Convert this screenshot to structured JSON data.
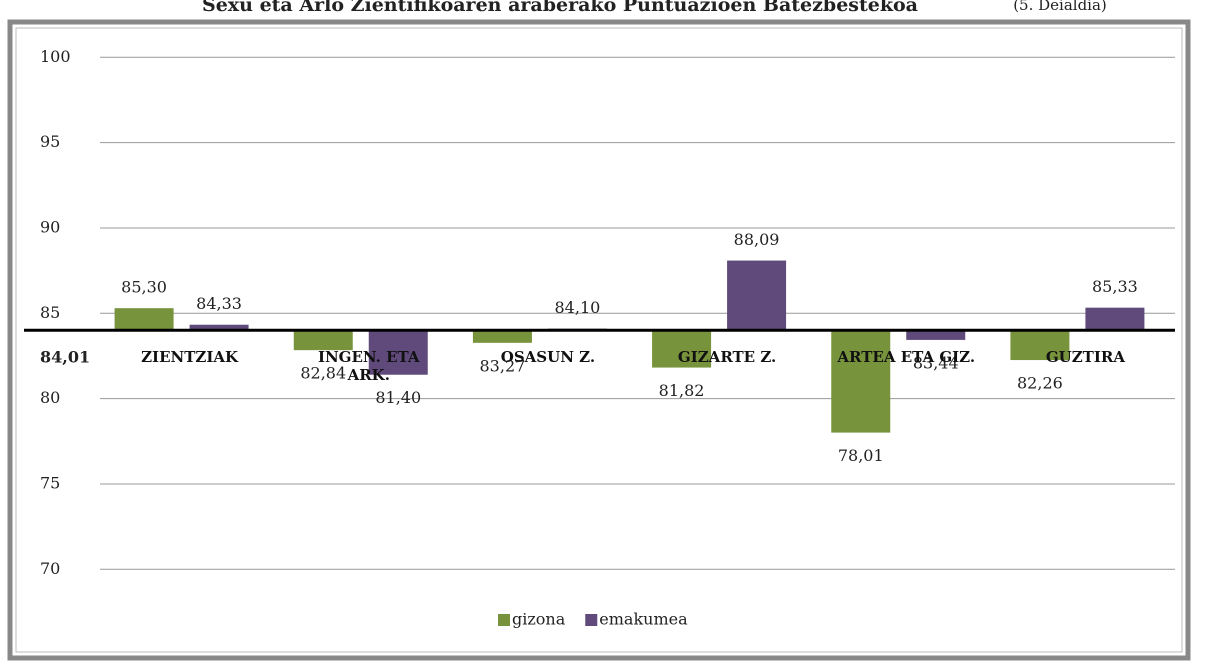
{
  "chart_data": {
    "type": "bar",
    "title": "Sexu eta Arlo Zientifikoaren araberako Puntuazioen Batezbestekoa",
    "subtitle": "(5. Deialdia)",
    "categories": [
      "ZIENTZIAK",
      "INGEN. ETA ARK.",
      "OSASUN Z.",
      "GIZARTE Z.",
      "ARTEA ETA GIZ.",
      "GUZTIRA"
    ],
    "series": [
      {
        "name": "gizona",
        "color": "#77933c",
        "values": [
          85.3,
          82.84,
          83.27,
          81.82,
          78.01,
          82.26
        ],
        "value_labels": [
          "85,30",
          "82,84",
          "83,27",
          "81,82",
          "78,01",
          "82,26"
        ]
      },
      {
        "name": "emakumea",
        "color": "#604a7b",
        "values": [
          84.33,
          81.4,
          84.1,
          88.09,
          83.44,
          85.33
        ],
        "value_labels": [
          "84,33",
          "81,40",
          "84,10",
          "88,09",
          "83,44",
          "85,33"
        ]
      }
    ],
    "baseline": {
      "value": 84.01,
      "label": "84,01"
    },
    "ylim": [
      68.2,
      101.6
    ],
    "yticks": [
      70,
      75,
      80,
      85,
      90,
      95,
      100
    ],
    "grid": true,
    "legend": "bottom"
  }
}
